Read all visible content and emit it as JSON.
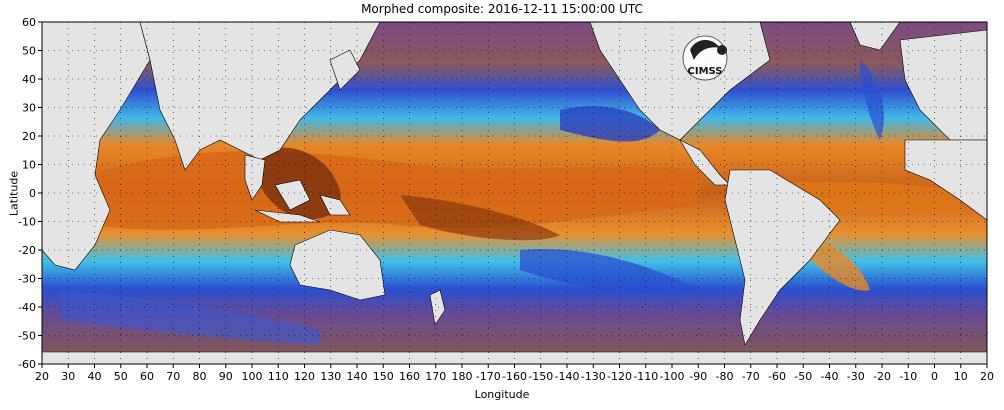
{
  "title": "Morphed composite: 2016-12-11 15:00:00 UTC",
  "xlabel": "Longitude",
  "ylabel": "Latitude",
  "colors": {
    "land": "#e4e4e4",
    "dry_purple": "#7c4a84",
    "dry_brown": "#8a5a4a",
    "blue": "#2a5ad8",
    "cyan": "#40c0e8",
    "green": "#60e0a0",
    "yellow": "#f0e040",
    "orange": "#e87818",
    "dark_brown": "#7a3010"
  },
  "chart_data": {
    "type": "heatmap",
    "x_ticks": [
      "20",
      "30",
      "40",
      "50",
      "60",
      "70",
      "80",
      "90",
      "100",
      "110",
      "120",
      "130",
      "140",
      "150",
      "160",
      "170",
      "180",
      "-170",
      "-160",
      "-150",
      "-140",
      "-130",
      "-120",
      "-110",
      "-100",
      "-90",
      "-80",
      "-70",
      "-60",
      "-50",
      "-40",
      "-30",
      "-20",
      "-10",
      "0",
      "10",
      "20"
    ],
    "y_ticks": [
      "60",
      "50",
      "40",
      "30",
      "20",
      "10",
      "0",
      "-10",
      "-20",
      "-30",
      "-40",
      "-50",
      "-60"
    ],
    "x_range": [
      20,
      380
    ],
    "y_range": [
      -60,
      60
    ],
    "grid": true
  },
  "logo": {
    "text": "CIMSS"
  }
}
